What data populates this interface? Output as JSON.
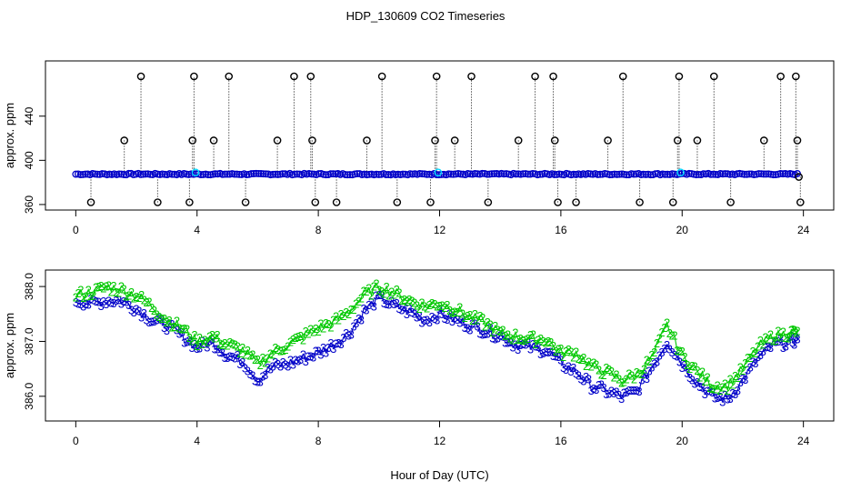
{
  "title": "HDP_130609  CO2 Timeseries",
  "colors": {
    "background": "#ffffff",
    "axis": "#000000",
    "flagged": "#000000",
    "series_blue": "#0000c8",
    "series_green": "#00c800",
    "highlight_cyan": "#00d8ff"
  },
  "chart_data": [
    {
      "type": "scatter",
      "panel": "top",
      "xlabel": "",
      "ylabel": "approx. ppm",
      "xlim": [
        -1,
        25
      ],
      "ylim": [
        355,
        490
      ],
      "xticks": [
        0,
        4,
        8,
        12,
        16,
        20,
        24
      ],
      "yticks": [
        360,
        400,
        440
      ],
      "baseline_level": 387.5,
      "series": [
        {
          "marker": "circle",
          "color": "blue",
          "x_start": 0.0,
          "x_end": 23.8,
          "level": 387.5
        }
      ],
      "flagged_points": [
        {
          "x": 0.5,
          "y": 362
        },
        {
          "x": 1.6,
          "y": 418
        },
        {
          "x": 2.15,
          "y": 476
        },
        {
          "x": 2.7,
          "y": 362
        },
        {
          "x": 3.75,
          "y": 362
        },
        {
          "x": 3.85,
          "y": 418
        },
        {
          "x": 3.9,
          "y": 476
        },
        {
          "x": 4.55,
          "y": 418
        },
        {
          "x": 5.05,
          "y": 476
        },
        {
          "x": 5.6,
          "y": 362
        },
        {
          "x": 6.65,
          "y": 418
        },
        {
          "x": 7.2,
          "y": 476
        },
        {
          "x": 7.75,
          "y": 476
        },
        {
          "x": 7.8,
          "y": 418
        },
        {
          "x": 7.9,
          "y": 362
        },
        {
          "x": 8.6,
          "y": 362
        },
        {
          "x": 9.6,
          "y": 418
        },
        {
          "x": 10.1,
          "y": 476
        },
        {
          "x": 10.6,
          "y": 362
        },
        {
          "x": 11.7,
          "y": 362
        },
        {
          "x": 11.85,
          "y": 418
        },
        {
          "x": 11.9,
          "y": 476
        },
        {
          "x": 12.5,
          "y": 418
        },
        {
          "x": 13.05,
          "y": 476
        },
        {
          "x": 13.6,
          "y": 362
        },
        {
          "x": 14.6,
          "y": 418
        },
        {
          "x": 15.15,
          "y": 476
        },
        {
          "x": 15.75,
          "y": 476
        },
        {
          "x": 15.8,
          "y": 418
        },
        {
          "x": 15.9,
          "y": 362
        },
        {
          "x": 16.5,
          "y": 362
        },
        {
          "x": 17.55,
          "y": 418
        },
        {
          "x": 18.05,
          "y": 476
        },
        {
          "x": 18.6,
          "y": 362
        },
        {
          "x": 19.7,
          "y": 362
        },
        {
          "x": 19.85,
          "y": 418
        },
        {
          "x": 19.9,
          "y": 476
        },
        {
          "x": 20.5,
          "y": 418
        },
        {
          "x": 21.05,
          "y": 476
        },
        {
          "x": 21.6,
          "y": 362
        },
        {
          "x": 22.7,
          "y": 418
        },
        {
          "x": 23.25,
          "y": 476
        },
        {
          "x": 23.75,
          "y": 476
        },
        {
          "x": 23.8,
          "y": 418
        },
        {
          "x": 23.85,
          "y": 385
        },
        {
          "x": 23.9,
          "y": 362
        }
      ],
      "highlight_points": [
        {
          "x": 3.95,
          "y": 389
        },
        {
          "x": 11.95,
          "y": 389
        },
        {
          "x": 19.95,
          "y": 389
        }
      ]
    },
    {
      "type": "line",
      "panel": "bottom",
      "xlabel": "Hour of Day (UTC)",
      "ylabel": "approx. ppm",
      "xlim": [
        -1,
        25
      ],
      "ylim": [
        385.55,
        388.3
      ],
      "xticks": [
        0,
        4,
        8,
        12,
        16,
        20,
        24
      ],
      "yticks": [
        386.0,
        387.0,
        388.0
      ],
      "ytick_labels": [
        "386.0",
        "387.0",
        "388.0"
      ],
      "series": [
        {
          "marker": "3",
          "color": "blue",
          "x": [
            0,
            0.5,
            1,
            1.5,
            2,
            2.5,
            3,
            3.5,
            4,
            4.5,
            5,
            5.5,
            6,
            6.5,
            7,
            7.5,
            8,
            8.5,
            9,
            9.5,
            10,
            10.5,
            11,
            11.5,
            12,
            12.5,
            13,
            13.5,
            14,
            14.5,
            15,
            15.5,
            16,
            16.5,
            17,
            17.5,
            18,
            18.5,
            19,
            19.5,
            20,
            20.5,
            21,
            21.5,
            22,
            22.5,
            23,
            23.5,
            23.8
          ],
          "y": [
            387.75,
            387.7,
            387.75,
            387.75,
            387.6,
            387.4,
            387.3,
            387.1,
            386.9,
            387.0,
            386.75,
            386.65,
            386.3,
            386.55,
            386.6,
            386.7,
            386.8,
            386.95,
            387.15,
            387.55,
            387.8,
            387.65,
            387.55,
            387.4,
            387.5,
            387.4,
            387.3,
            387.2,
            387.1,
            386.95,
            386.9,
            386.85,
            386.6,
            386.45,
            386.2,
            386.1,
            386.0,
            386.1,
            386.55,
            387.0,
            386.6,
            386.25,
            386.0,
            385.95,
            386.3,
            386.7,
            386.95,
            387.0,
            387.05
          ]
        },
        {
          "marker": "2",
          "color": "green",
          "x": [
            0,
            0.5,
            1,
            1.5,
            2,
            2.5,
            3,
            3.5,
            4,
            4.5,
            5,
            5.5,
            6,
            6.5,
            7,
            7.5,
            8,
            8.5,
            9,
            9.5,
            10,
            10.5,
            11,
            11.5,
            12,
            12.5,
            13,
            13.5,
            14,
            14.5,
            15,
            15.5,
            16,
            16.5,
            17,
            17.5,
            18,
            18.5,
            19,
            19.5,
            20,
            20.5,
            21,
            21.5,
            22,
            22.5,
            23,
            23.5,
            23.8
          ],
          "y": [
            387.85,
            387.9,
            388.0,
            387.95,
            387.85,
            387.65,
            387.4,
            387.25,
            387.0,
            387.1,
            386.95,
            386.85,
            386.6,
            386.8,
            386.95,
            387.1,
            387.25,
            387.35,
            387.55,
            387.85,
            388.0,
            387.9,
            387.75,
            387.65,
            387.7,
            387.6,
            387.45,
            387.35,
            387.15,
            387.1,
            387.05,
            387.05,
            386.8,
            386.8,
            386.55,
            386.45,
            386.3,
            386.4,
            386.7,
            387.3,
            386.75,
            386.45,
            386.2,
            386.2,
            386.5,
            386.9,
            387.1,
            387.15,
            387.2
          ]
        }
      ]
    }
  ]
}
